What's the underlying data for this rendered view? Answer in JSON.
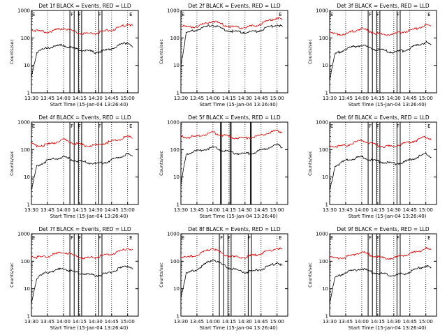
{
  "figure": {
    "x_ticks": [
      "13:30",
      "13:45",
      "14:00",
      "14:15",
      "14:30",
      "14:45",
      "15:00"
    ],
    "x_label": "Start Time (15-Jan-04 13:26:40)",
    "y_label": "Counts/sec",
    "colors": {
      "events": "#000000",
      "lld": "#dd0000",
      "axes": "#000000"
    }
  },
  "chart_data": [
    {
      "type": "line",
      "title": "Det 1f BLACK = Events, RED = LLD",
      "yscale": "log",
      "ylim": [
        1,
        1000
      ],
      "yticks": [
        "1",
        "10",
        "100",
        "1000"
      ],
      "x_ticks": [
        "13:30",
        "13:45",
        "14:00",
        "14:15",
        "14:30",
        "14:45",
        "15:00"
      ],
      "xlabel": "Start Time (15-Jan-04 13:26:40)",
      "ylabel": "Counts/sec",
      "flag_marks": [
        "E",
        "F",
        "F",
        "F",
        "E"
      ],
      "series": [
        {
          "name": "Events",
          "color": "#000000",
          "x": [
            "13:30",
            "13:35",
            "13:45",
            "14:00",
            "14:10",
            "14:20",
            "14:30",
            "14:40",
            "14:50",
            "15:00",
            "15:05"
          ],
          "y": [
            4,
            30,
            45,
            55,
            40,
            35,
            30,
            35,
            50,
            70,
            50
          ]
        },
        {
          "name": "LLD",
          "color": "#dd0000",
          "x": [
            "13:30",
            "13:35",
            "13:45",
            "14:00",
            "14:10",
            "14:20",
            "14:30",
            "14:40",
            "14:50",
            "15:00",
            "15:05"
          ],
          "y": [
            200,
            180,
            160,
            230,
            170,
            140,
            150,
            180,
            220,
            320,
            280
          ]
        }
      ]
    },
    {
      "type": "line",
      "title": "Det 2f BLACK = Events, RED = LLD",
      "yscale": "log",
      "ylim": [
        1,
        1000
      ],
      "yticks": [
        "1",
        "10",
        "100",
        "1000"
      ],
      "x_ticks": [
        "13:30",
        "13:45",
        "14:00",
        "14:15",
        "14:30",
        "14:45",
        "15:00"
      ],
      "xlabel": "Start Time (15-Jan-04 13:26:40)",
      "ylabel": "Counts/sec",
      "flag_marks": [
        "E",
        "E"
      ],
      "series": [
        {
          "name": "Events",
          "color": "#000000",
          "x": [
            "13:30",
            "13:35",
            "13:45",
            "14:00",
            "14:10",
            "14:20",
            "14:30",
            "14:40",
            "14:50",
            "15:00",
            "15:05"
          ],
          "y": [
            10,
            150,
            200,
            300,
            200,
            170,
            160,
            170,
            230,
            300,
            250
          ]
        },
        {
          "name": "LLD",
          "color": "#dd0000",
          "x": [
            "13:30",
            "13:35",
            "13:45",
            "14:00",
            "14:10",
            "14:20",
            "14:30",
            "14:40",
            "14:50",
            "15:00",
            "15:05"
          ],
          "y": [
            280,
            250,
            260,
            420,
            300,
            250,
            240,
            280,
            400,
            550,
            450
          ]
        }
      ]
    },
    {
      "type": "line",
      "title": "Det 3f BLACK = Events, RED = LLD",
      "yscale": "log",
      "ylim": [
        1,
        1000
      ],
      "yticks": [
        "1",
        "10",
        "100",
        "1000"
      ],
      "x_ticks": [
        "13:30",
        "13:45",
        "14:00",
        "14:15",
        "14:30",
        "14:45",
        "15:00"
      ],
      "xlabel": "Start Time (15-Jan-04 13:26:40)",
      "ylabel": "Counts/sec",
      "flag_marks": [
        "E",
        "F",
        "F",
        "F",
        "E"
      ],
      "series": [
        {
          "name": "Events",
          "color": "#000000",
          "x": [
            "13:30",
            "13:35",
            "13:45",
            "14:00",
            "14:10",
            "14:20",
            "14:30",
            "14:40",
            "14:50",
            "15:00",
            "15:05"
          ],
          "y": [
            3,
            25,
            40,
            55,
            40,
            35,
            30,
            35,
            50,
            70,
            55
          ]
        },
        {
          "name": "LLD",
          "color": "#dd0000",
          "x": [
            "13:30",
            "13:35",
            "13:45",
            "14:00",
            "14:10",
            "14:20",
            "14:30",
            "14:40",
            "14:50",
            "15:00",
            "15:05"
          ],
          "y": [
            150,
            140,
            140,
            220,
            160,
            130,
            140,
            170,
            210,
            300,
            260
          ]
        }
      ]
    },
    {
      "type": "line",
      "title": "Det 4f BLACK = Events, RED = LLD",
      "yscale": "log",
      "ylim": [
        1,
        1000
      ],
      "yticks": [
        "1",
        "10",
        "100",
        "1000"
      ],
      "x_ticks": [
        "13:30",
        "13:45",
        "14:00",
        "14:15",
        "14:30",
        "14:45",
        "15:00"
      ],
      "xlabel": "Start Time (15-Jan-04 13:26:40)",
      "ylabel": "Counts/sec",
      "flag_marks": [
        "E",
        "F",
        "F",
        "F",
        "E"
      ],
      "series": [
        {
          "name": "Events",
          "color": "#000000",
          "x": [
            "13:30",
            "13:35",
            "13:45",
            "14:00",
            "14:10",
            "14:20",
            "14:30",
            "14:40",
            "14:50",
            "15:00",
            "15:05"
          ],
          "y": [
            3,
            25,
            40,
            55,
            40,
            35,
            30,
            35,
            50,
            70,
            55
          ]
        },
        {
          "name": "LLD",
          "color": "#dd0000",
          "x": [
            "13:30",
            "13:35",
            "13:45",
            "14:00",
            "14:10",
            "14:20",
            "14:30",
            "14:40",
            "14:50",
            "15:00",
            "15:05"
          ],
          "y": [
            160,
            140,
            150,
            230,
            170,
            140,
            140,
            180,
            220,
            300,
            260
          ]
        }
      ]
    },
    {
      "type": "line",
      "title": "Det 5f BLACK = Events, RED = LLD",
      "yscale": "log",
      "ylim": [
        1,
        1000
      ],
      "yticks": [
        "1",
        "10",
        "100",
        "1000"
      ],
      "x_ticks": [
        "13:30",
        "13:45",
        "14:00",
        "14:15",
        "14:30",
        "14:45",
        "15:00"
      ],
      "xlabel": "Start Time (15-Jan-04 13:26:40)",
      "ylabel": "Counts/sec",
      "flag_marks": [],
      "series": [
        {
          "name": "Events",
          "color": "#000000",
          "x": [
            "13:30",
            "13:35",
            "13:45",
            "14:00",
            "14:10",
            "14:20",
            "14:30",
            "14:40",
            "14:50",
            "15:00",
            "15:05"
          ],
          "y": [
            5,
            70,
            90,
            120,
            90,
            75,
            70,
            80,
            110,
            150,
            120
          ]
        },
        {
          "name": "LLD",
          "color": "#dd0000",
          "x": [
            "13:30",
            "13:35",
            "13:45",
            "14:00",
            "14:10",
            "14:20",
            "14:30",
            "14:40",
            "14:50",
            "15:00",
            "15:05"
          ],
          "y": [
            300,
            280,
            300,
            420,
            330,
            270,
            260,
            300,
            380,
            500,
            430
          ]
        }
      ]
    },
    {
      "type": "line",
      "title": "Det 6f BLACK = Events, RED = LLD",
      "yscale": "log",
      "ylim": [
        1,
        1000
      ],
      "yticks": [
        "1",
        "10",
        "100",
        "1000"
      ],
      "x_ticks": [
        "13:30",
        "13:45",
        "14:00",
        "14:15",
        "14:30",
        "14:45",
        "15:00"
      ],
      "xlabel": "Start Time (15-Jan-04 13:26:40)",
      "ylabel": "Counts/sec",
      "flag_marks": [
        "E",
        "F",
        "F",
        "F",
        "E"
      ],
      "series": [
        {
          "name": "Events",
          "color": "#000000",
          "x": [
            "13:30",
            "13:35",
            "13:45",
            "14:00",
            "14:10",
            "14:20",
            "14:30",
            "14:40",
            "14:50",
            "15:00",
            "15:05"
          ],
          "y": [
            3,
            25,
            40,
            55,
            40,
            35,
            30,
            35,
            50,
            70,
            55
          ]
        },
        {
          "name": "LLD",
          "color": "#dd0000",
          "x": [
            "13:30",
            "13:35",
            "13:45",
            "14:00",
            "14:10",
            "14:20",
            "14:30",
            "14:40",
            "14:50",
            "15:00",
            "15:05"
          ],
          "y": [
            140,
            130,
            140,
            220,
            160,
            130,
            130,
            170,
            210,
            290,
            250
          ]
        }
      ]
    },
    {
      "type": "line",
      "title": "Det 7f BLACK = Events, RED = LLD",
      "yscale": "log",
      "ylim": [
        1,
        1000
      ],
      "yticks": [
        "1",
        "10",
        "100",
        "1000"
      ],
      "x_ticks": [
        "13:30",
        "13:45",
        "14:00",
        "14:15",
        "14:30",
        "14:45",
        "15:00"
      ],
      "xlabel": "Start Time (15-Jan-04 13:26:40)",
      "ylabel": "Counts/sec",
      "flag_marks": [
        "E",
        "F",
        "F",
        "F",
        "E"
      ],
      "series": [
        {
          "name": "Events",
          "color": "#000000",
          "x": [
            "13:30",
            "13:35",
            "13:45",
            "14:00",
            "14:10",
            "14:20",
            "14:30",
            "14:40",
            "14:50",
            "15:00",
            "15:05"
          ],
          "y": [
            3,
            25,
            40,
            55,
            40,
            35,
            30,
            35,
            50,
            70,
            55
          ]
        },
        {
          "name": "LLD",
          "color": "#dd0000",
          "x": [
            "13:30",
            "13:35",
            "13:45",
            "14:00",
            "14:10",
            "14:20",
            "14:30",
            "14:40",
            "14:50",
            "15:00",
            "15:05"
          ],
          "y": [
            160,
            140,
            150,
            220,
            160,
            130,
            140,
            170,
            210,
            300,
            260
          ]
        }
      ]
    },
    {
      "type": "line",
      "title": "Det 8f BLACK = Events, RED = LLD",
      "yscale": "log",
      "ylim": [
        1,
        1000
      ],
      "yticks": [
        "1",
        "10",
        "100",
        "1000"
      ],
      "x_ticks": [
        "13:30",
        "13:45",
        "14:00",
        "14:15",
        "14:30",
        "14:45",
        "15:00"
      ],
      "xlabel": "Start Time (15-Jan-04 13:26:40)",
      "ylabel": "Counts/sec",
      "flag_marks": [
        "E",
        "F",
        "F",
        "F",
        "E"
      ],
      "series": [
        {
          "name": "Events",
          "color": "#000000",
          "x": [
            "13:30",
            "13:35",
            "13:45",
            "14:00",
            "14:10",
            "14:20",
            "14:30",
            "14:40",
            "14:50",
            "15:00",
            "15:05"
          ],
          "y": [
            5,
            35,
            50,
            120,
            70,
            50,
            40,
            45,
            60,
            90,
            70
          ]
        },
        {
          "name": "LLD",
          "color": "#dd0000",
          "x": [
            "13:30",
            "13:35",
            "13:45",
            "14:00",
            "14:10",
            "14:20",
            "14:30",
            "14:40",
            "14:50",
            "15:00",
            "15:05"
          ],
          "y": [
            150,
            130,
            170,
            300,
            180,
            140,
            140,
            170,
            220,
            300,
            260
          ]
        }
      ]
    },
    {
      "type": "line",
      "title": "Det 9f BLACK = Events, RED = LLD",
      "yscale": "log",
      "ylim": [
        1,
        1000
      ],
      "yticks": [
        "1",
        "10",
        "100",
        "1000"
      ],
      "x_ticks": [
        "13:30",
        "13:45",
        "14:00",
        "14:15",
        "14:30",
        "14:45",
        "15:00"
      ],
      "xlabel": "Start Time (15-Jan-04 13:26:40)",
      "ylabel": "Counts/sec",
      "flag_marks": [
        "E",
        "F",
        "F",
        "F",
        "E"
      ],
      "series": [
        {
          "name": "Events",
          "color": "#000000",
          "x": [
            "13:30",
            "13:35",
            "13:45",
            "14:00",
            "14:10",
            "14:20",
            "14:30",
            "14:40",
            "14:50",
            "15:00",
            "15:05"
          ],
          "y": [
            3,
            25,
            40,
            55,
            40,
            35,
            30,
            35,
            50,
            70,
            55
          ]
        },
        {
          "name": "LLD",
          "color": "#dd0000",
          "x": [
            "13:30",
            "13:35",
            "13:45",
            "14:00",
            "14:10",
            "14:20",
            "14:30",
            "14:40",
            "14:50",
            "15:00",
            "15:05"
          ],
          "y": [
            140,
            130,
            140,
            220,
            160,
            130,
            130,
            170,
            210,
            290,
            250
          ]
        }
      ]
    }
  ]
}
